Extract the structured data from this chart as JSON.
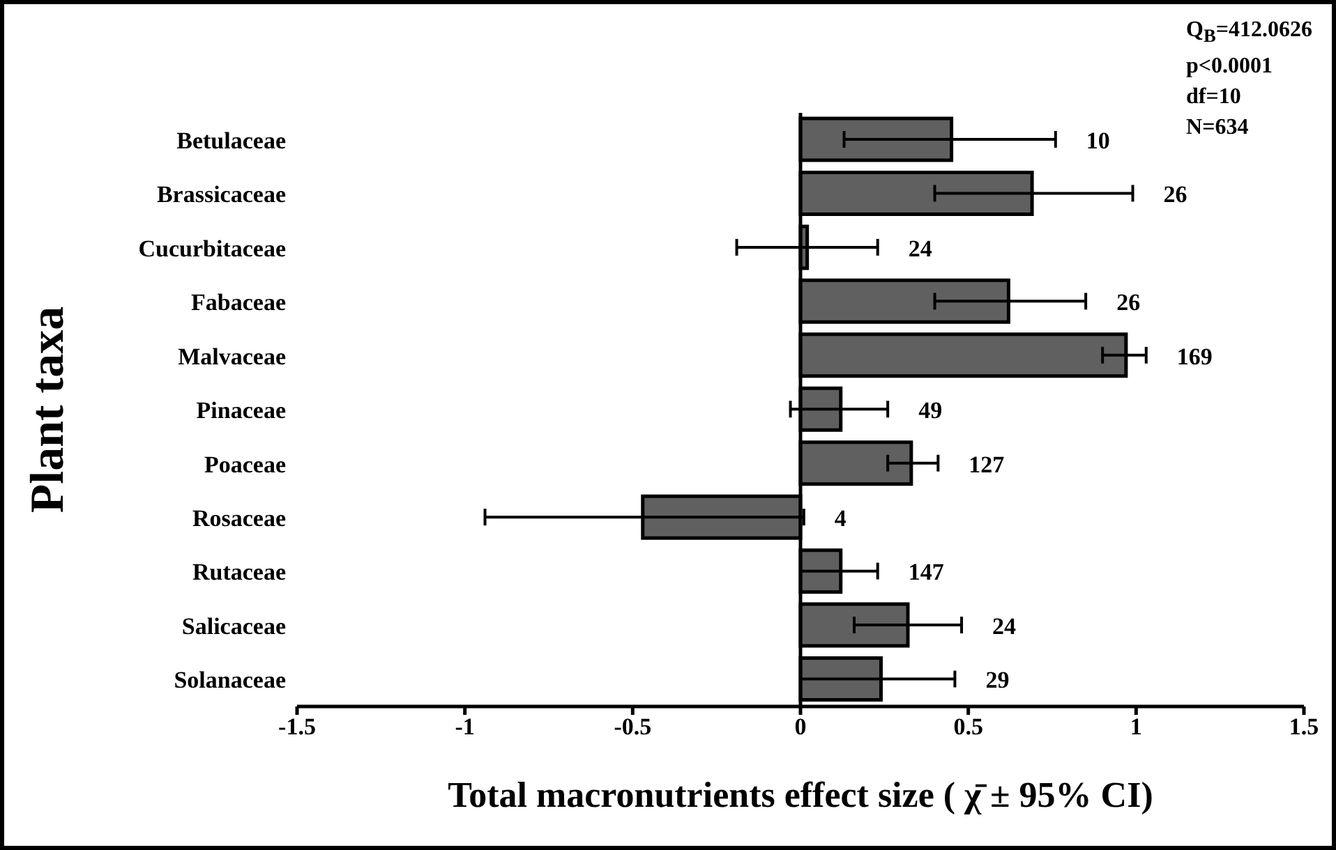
{
  "chart_data": {
    "type": "bar",
    "orientation": "horizontal",
    "xlabel": "Total macronutrients effect size ( χ̄ ± 95% CI)",
    "ylabel": "Plant taxa",
    "categories": [
      "Betulaceae",
      "Brassicaceae",
      "Cucurbitaceae",
      "Fabaceae",
      "Malvaceae",
      "Pinaceae",
      "Poaceae",
      "Rosaceae",
      "Rutaceae",
      "Salicaceae",
      "Solanaceae"
    ],
    "values": [
      0.45,
      0.69,
      0.02,
      0.62,
      0.97,
      0.12,
      0.33,
      -0.47,
      0.12,
      0.32,
      0.24
    ],
    "errors": [
      [
        0.13,
        0.76
      ],
      [
        0.4,
        0.99
      ],
      [
        -0.19,
        0.23
      ],
      [
        0.4,
        0.85
      ],
      [
        0.9,
        1.03
      ],
      [
        -0.03,
        0.26
      ],
      [
        0.26,
        0.41
      ],
      [
        -0.94,
        0.01
      ],
      [
        0.0,
        0.23
      ],
      [
        0.16,
        0.48
      ],
      [
        0.0,
        0.46
      ]
    ],
    "color": "#606060",
    "xlim": [
      -1.5,
      1.5
    ],
    "xticks": [
      -1.5,
      -1,
      -0.5,
      0,
      0.5,
      1,
      1.5
    ],
    "annotations": [
      "10",
      "26",
      "24",
      "26",
      "169",
      "49",
      "127",
      "4",
      "147",
      "24",
      "29",
      "Q$_{B}$=412.0626",
      "p<0.0001",
      "df=10",
      "N=634"
    ]
  }
}
